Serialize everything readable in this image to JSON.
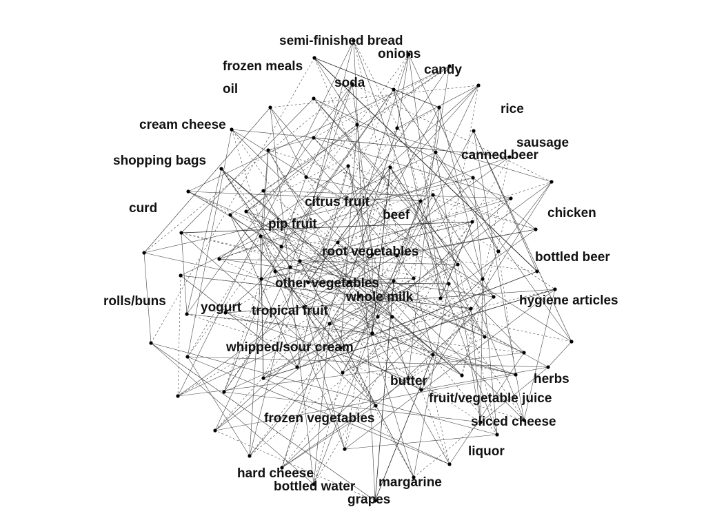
{
  "diagram": {
    "type": "network",
    "labels": [
      {
        "id": "semi-finished-bread",
        "text": "semi-finished bread"
      },
      {
        "id": "onions",
        "text": "onions"
      },
      {
        "id": "frozen-meals",
        "text": "frozen meals"
      },
      {
        "id": "candy",
        "text": "candy"
      },
      {
        "id": "soda",
        "text": "soda"
      },
      {
        "id": "oil",
        "text": "oil"
      },
      {
        "id": "rice",
        "text": "rice"
      },
      {
        "id": "cream-cheese",
        "text": "cream cheese"
      },
      {
        "id": "sausage",
        "text": "sausage"
      },
      {
        "id": "canned-beer",
        "text": "canned beer"
      },
      {
        "id": "shopping-bags",
        "text": "shopping bags"
      },
      {
        "id": "citrus-fruit",
        "text": "citrus fruit"
      },
      {
        "id": "curd",
        "text": "curd"
      },
      {
        "id": "beef",
        "text": "beef"
      },
      {
        "id": "chicken",
        "text": "chicken"
      },
      {
        "id": "pip-fruit",
        "text": "pip fruit"
      },
      {
        "id": "root-vegetables",
        "text": "root vegetables"
      },
      {
        "id": "bottled-beer",
        "text": "bottled beer"
      },
      {
        "id": "other-vegetables",
        "text": "other vegetables"
      },
      {
        "id": "rolls-buns",
        "text": "rolls/buns"
      },
      {
        "id": "whole-milk",
        "text": "whole milk"
      },
      {
        "id": "hygiene-articles",
        "text": "hygiene articles"
      },
      {
        "id": "yogurt",
        "text": "yogurt"
      },
      {
        "id": "tropical-fruit",
        "text": "tropical fruit"
      },
      {
        "id": "whipped-sour-cream",
        "text": "whipped/sour cream"
      },
      {
        "id": "butter",
        "text": "butter"
      },
      {
        "id": "herbs",
        "text": "herbs"
      },
      {
        "id": "fruit-vegetable-juice",
        "text": "fruit/vegetable juice"
      },
      {
        "id": "frozen-vegetables",
        "text": "frozen vegetables"
      },
      {
        "id": "sliced-cheese",
        "text": "sliced cheese"
      },
      {
        "id": "liquor",
        "text": "liquor"
      },
      {
        "id": "hard-cheese",
        "text": "hard cheese"
      },
      {
        "id": "margarine",
        "text": "margarine"
      },
      {
        "id": "bottled-water",
        "text": "bottled water"
      },
      {
        "id": "grapes",
        "text": "grapes"
      }
    ]
  }
}
